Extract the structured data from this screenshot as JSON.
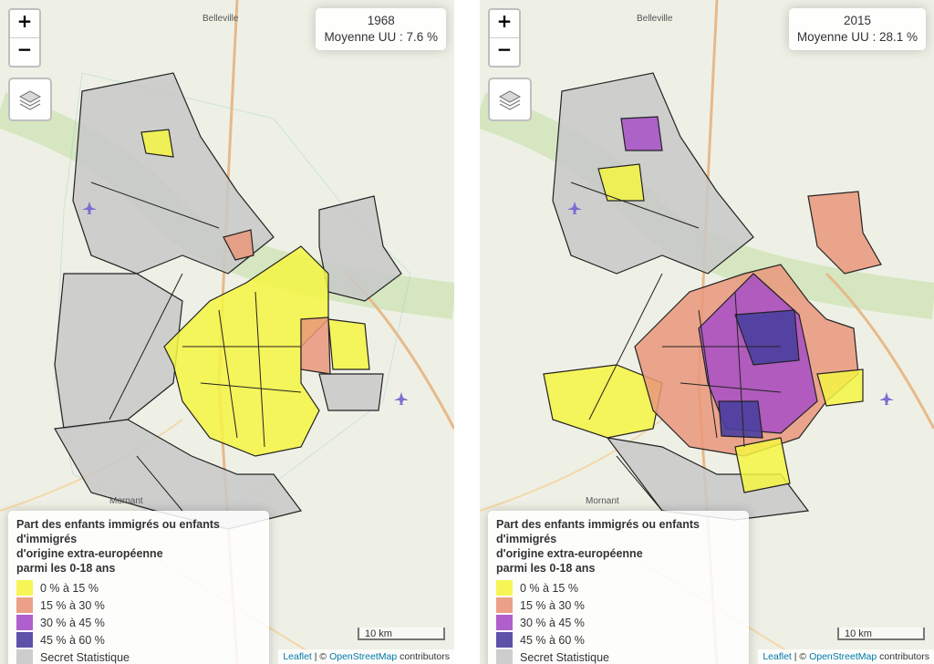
{
  "maps": [
    {
      "info": {
        "year": "1968",
        "average": "Moyenne UU : 7.6 %"
      },
      "legend": {
        "title_lines": [
          "Part des enfants immigrés ou enfants d'immigrés",
          "d'origine extra-européenne",
          "parmi les 0-18 ans"
        ],
        "classes": [
          "0 % à 15 %",
          "15 % à 30 %",
          "30 % à 45 %",
          "45 % à 60 %",
          "Secret Statistique"
        ]
      },
      "scale": "10 km",
      "attribution": {
        "leaflet": "Leaflet",
        "sep": " | © ",
        "osm": "OpenStreetMap",
        "rest": " contributors"
      },
      "zoom": {
        "in": "+",
        "out": "−"
      },
      "places": [
        "Belleville",
        "Mornant"
      ]
    },
    {
      "info": {
        "year": "2015",
        "average": "Moyenne UU : 28.1 %"
      },
      "legend": {
        "title_lines": [
          "Part des enfants immigrés ou enfants d'immigrés",
          "d'origine extra-européenne",
          "parmi les 0-18 ans"
        ],
        "classes": [
          "0 % à 15 %",
          "15 % à 30 %",
          "30 % à 45 %",
          "45 % à 60 %",
          "Secret Statistique"
        ]
      },
      "scale": "10 km",
      "attribution": {
        "leaflet": "Leaflet",
        "sep": " | © ",
        "osm": "OpenStreetMap",
        "rest": " contributors"
      },
      "zoom": {
        "in": "+",
        "out": "−"
      },
      "places": [
        "Belleville",
        "Mornant"
      ]
    }
  ],
  "class_colors": [
    "#f4f442",
    "#e9967a",
    "#a64fc6",
    "#4a3f9e",
    "#c8c8c8"
  ],
  "icons": {
    "layers": "layers-icon",
    "plane": "airport-icon"
  }
}
